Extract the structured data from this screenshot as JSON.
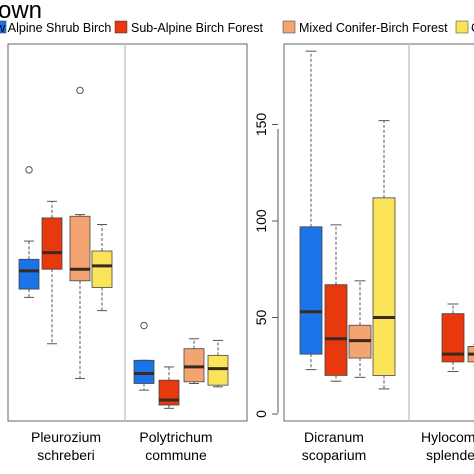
{
  "title_fragment": "own",
  "legend": [
    {
      "label": "w Alpine Shrub Birch",
      "color": "#1a73e8"
    },
    {
      "label": "Sub-Alpine Birch Forest",
      "color": "#e8380d"
    },
    {
      "label": "Mixed Conifer-Birch Forest",
      "color": "#f4a470"
    },
    {
      "label": "C",
      "color": "#fce45a"
    }
  ],
  "chart_data": [
    {
      "type": "boxplot",
      "panel": "left",
      "categories": [
        {
          "line1": "Pleurozium",
          "line2": "schreberi"
        },
        {
          "line1": "Polytrichum",
          "line2": "commune"
        }
      ],
      "series": [
        {
          "color": "#1a73e8",
          "boxes": [
            {
              "whisker_low": 70,
              "q1": 75,
              "median": 86,
              "q3": 93,
              "whisker_high": 104,
              "outliers": [
                147
              ]
            },
            {
              "whisker_low": 14,
              "q1": 18,
              "median": 24,
              "q3": 32,
              "whisker_high": 32,
              "outliers": [
                53
              ]
            }
          ]
        },
        {
          "color": "#e8380d",
          "boxes": [
            {
              "whisker_low": 42,
              "q1": 87,
              "median": 97,
              "q3": 118,
              "whisker_high": 128,
              "outliers": []
            },
            {
              "whisker_low": 3,
              "q1": 5,
              "median": 8,
              "q3": 20,
              "whisker_high": 28,
              "outliers": []
            }
          ]
        },
        {
          "color": "#f4a470",
          "boxes": [
            {
              "whisker_low": 21,
              "q1": 80,
              "median": 87,
              "q3": 119,
              "whisker_high": 120,
              "outliers": [
                195
              ]
            },
            {
              "whisker_low": 18,
              "q1": 19,
              "median": 28,
              "q3": 39,
              "whisker_high": 45,
              "outliers": []
            }
          ]
        },
        {
          "color": "#fce45a",
          "boxes": [
            {
              "whisker_low": 62,
              "q1": 76,
              "median": 89,
              "q3": 98,
              "whisker_high": 114,
              "outliers": []
            },
            {
              "whisker_low": 16,
              "q1": 17,
              "median": 27,
              "q3": 35,
              "whisker_high": 44,
              "outliers": []
            }
          ]
        }
      ]
    },
    {
      "type": "boxplot",
      "panel": "right",
      "categories": [
        {
          "line1": "Dicranum",
          "line2": "scoparium"
        },
        {
          "line1": "Hylocom",
          "line2": "splende"
        }
      ],
      "yticks": [
        0,
        50,
        100,
        150
      ],
      "ylim": [
        0,
        190
      ],
      "series": [
        {
          "color": "#1a73e8",
          "boxes": [
            {
              "whisker_low": 23,
              "q1": 31,
              "median": 53,
              "q3": 97,
              "whisker_high": 188,
              "outliers": []
            },
            null
          ]
        },
        {
          "color": "#e8380d",
          "boxes": [
            {
              "whisker_low": 17,
              "q1": 20,
              "median": 39,
              "q3": 67,
              "whisker_high": 98,
              "outliers": []
            },
            {
              "whisker_low": 22,
              "q1": 27,
              "median": 31,
              "q3": 52,
              "whisker_high": 57,
              "outliers": []
            }
          ]
        },
        {
          "color": "#f4a470",
          "boxes": [
            {
              "whisker_low": 19,
              "q1": 29,
              "median": 38,
              "q3": 46,
              "whisker_high": 69,
              "outliers": []
            },
            {
              "whisker_low": 25,
              "q1": 27,
              "median": 31,
              "q3": 35,
              "whisker_high": 36,
              "outliers": []
            }
          ]
        },
        {
          "color": "#fce45a",
          "boxes": [
            {
              "whisker_low": 13,
              "q1": 20,
              "median": 50,
              "q3": 112,
              "whisker_high": 152,
              "outliers": []
            },
            null
          ]
        }
      ]
    }
  ]
}
